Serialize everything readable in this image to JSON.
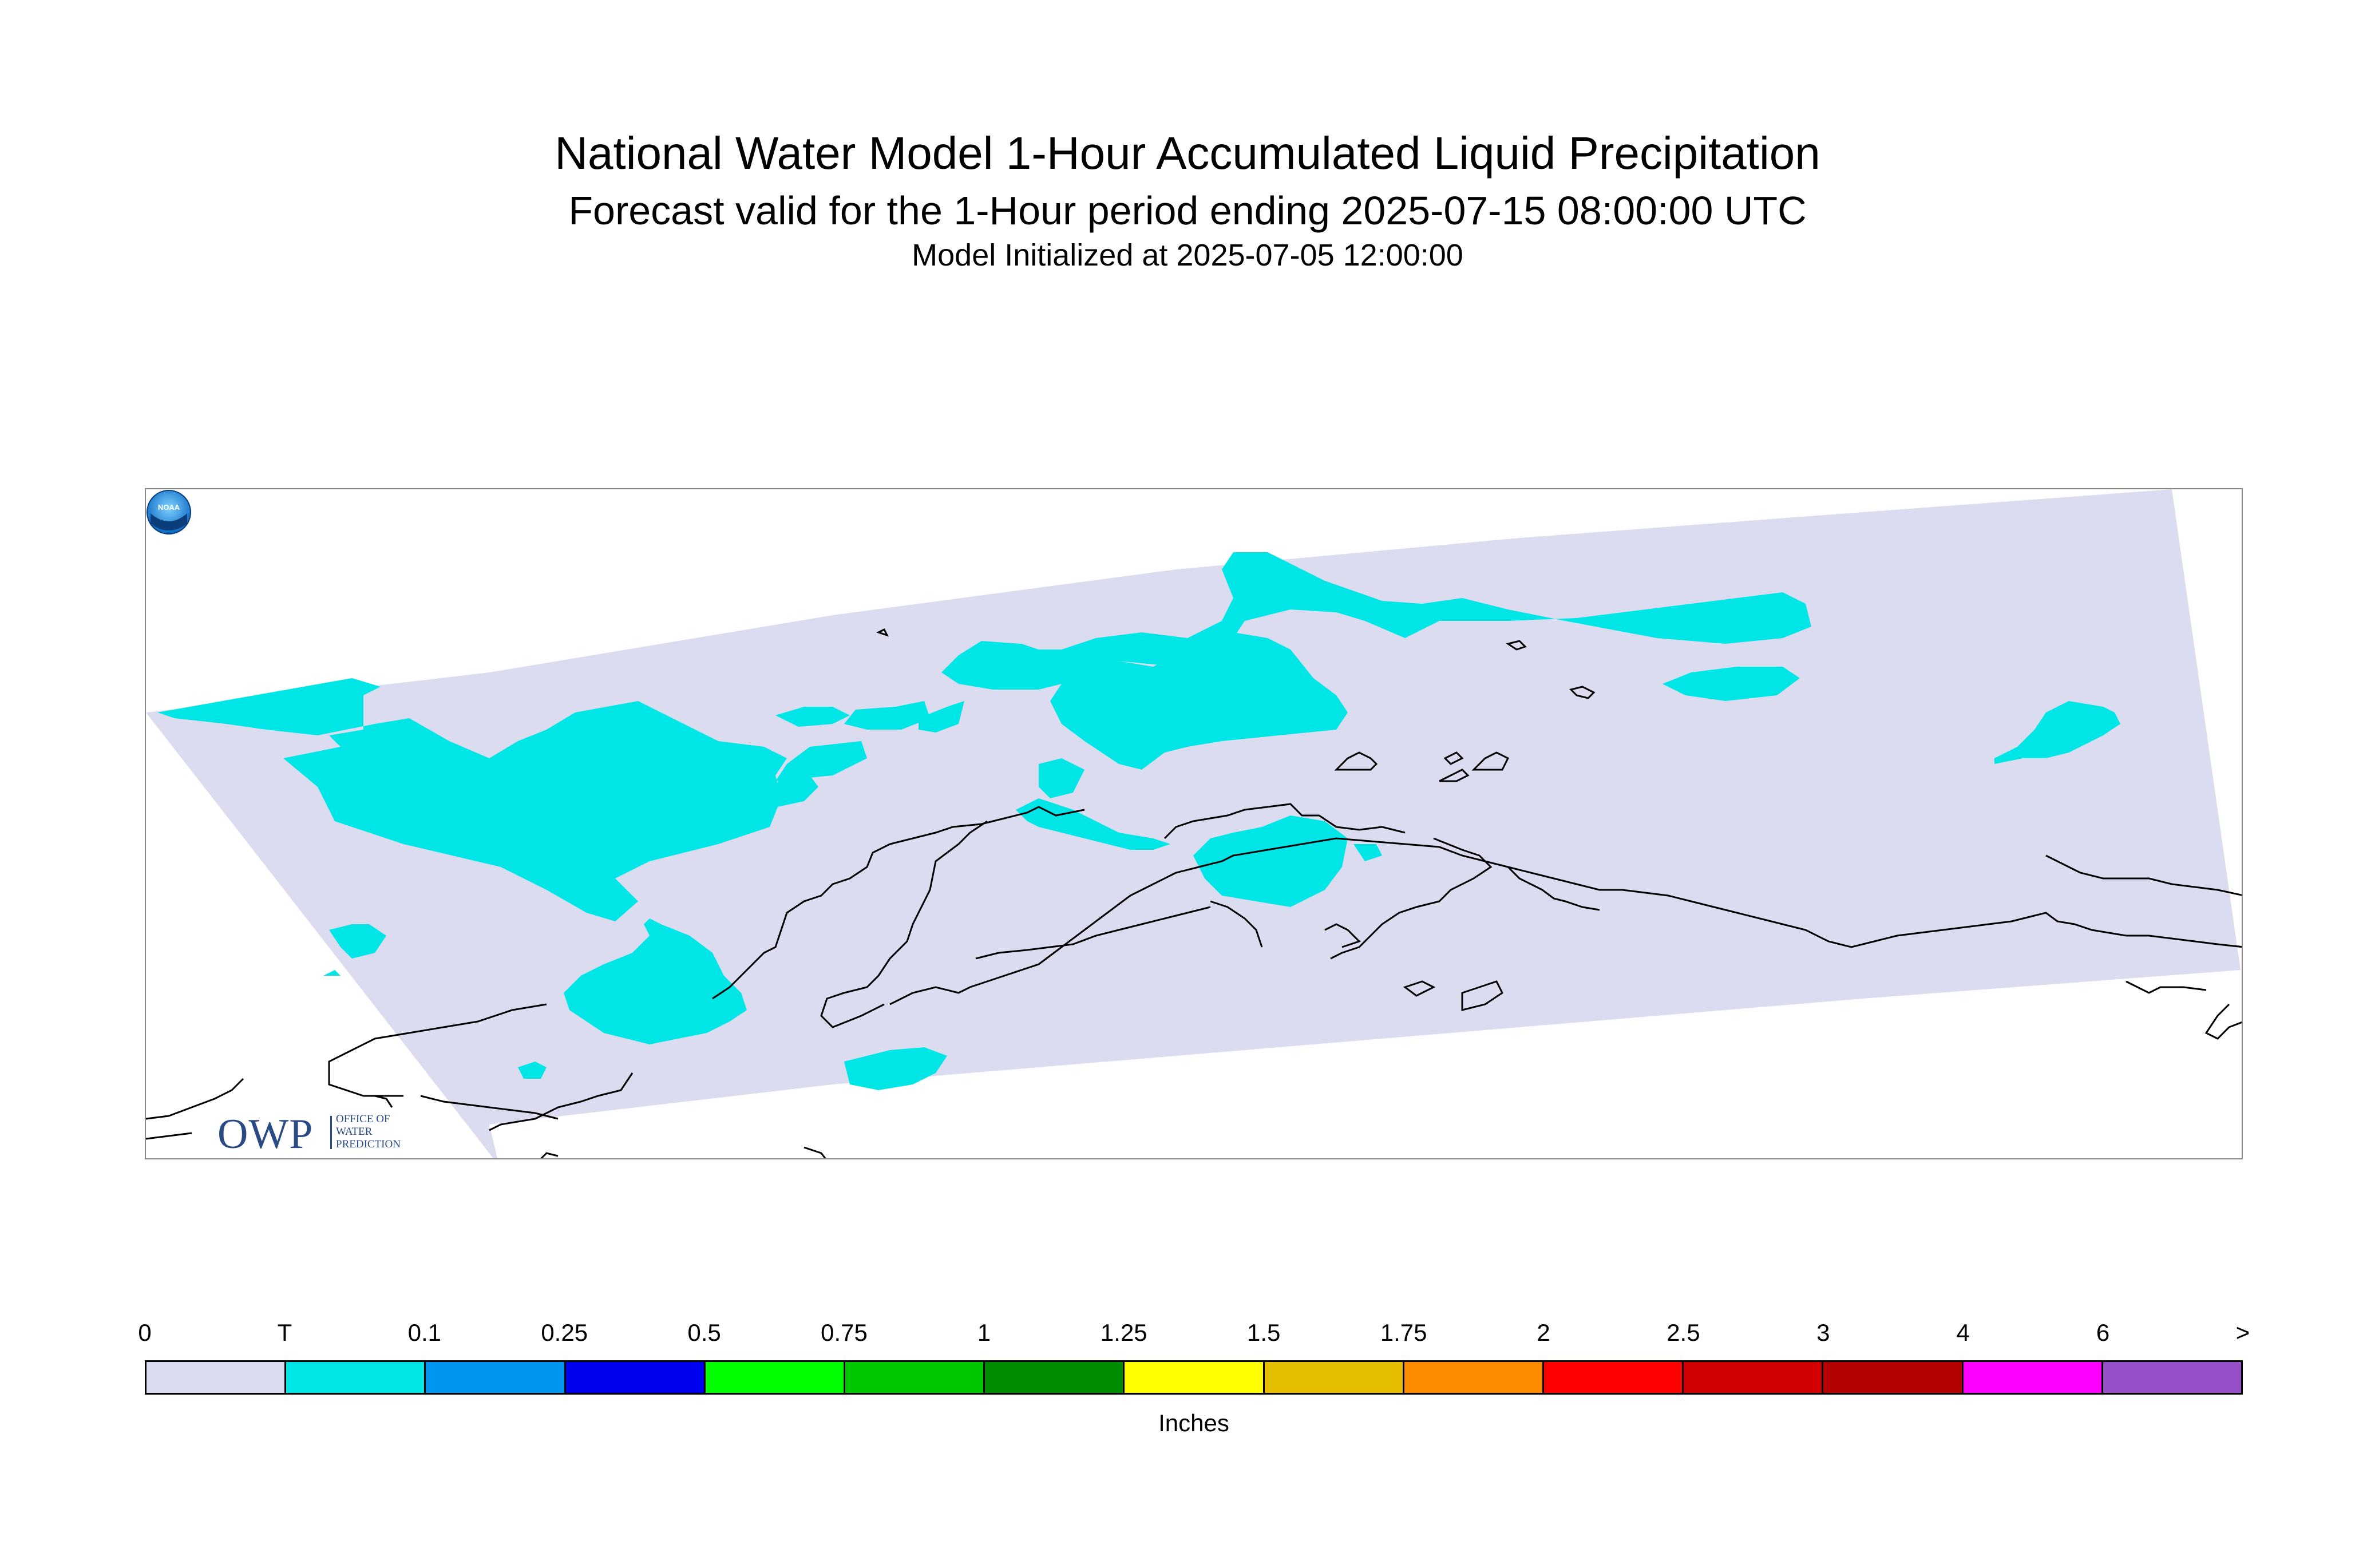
{
  "title": "National Water Model 1-Hour Accumulated Liquid Precipitation",
  "subtitle": "Forecast valid for the 1-Hour period ending 2025-07-15 08:00:00 UTC",
  "init_line": "Model Initialized at 2025-07-05 12:00:00",
  "logos": {
    "owp_text": "OWP",
    "owp_small_lines": [
      "OFFICE OF",
      "WATER",
      "PREDICTION"
    ],
    "noaa_text": "NOAA"
  },
  "legend": {
    "units": "Inches",
    "tick_labels": [
      "0",
      "T",
      "0.1",
      "0.25",
      "0.5",
      "0.75",
      "1",
      "1.25",
      "1.5",
      "1.75",
      "2",
      "2.5",
      "3",
      "4",
      "6",
      ">"
    ],
    "colors": [
      "#dcdcf0",
      "#00e6e6",
      "#0096f0",
      "#0000f0",
      "#00ff00",
      "#00c800",
      "#008c00",
      "#ffff00",
      "#e6be00",
      "#ff8c00",
      "#ff0000",
      "#d20000",
      "#b40000",
      "#ff00ff",
      "#9650c8"
    ]
  },
  "map": {
    "domain_fill": "#dcdcf0",
    "trace_fill": "#00e6e6",
    "coast_color": "#000000"
  }
}
